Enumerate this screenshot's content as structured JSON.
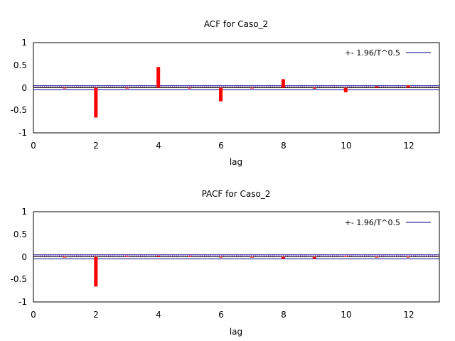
{
  "colors": {
    "bar": "#ff0000",
    "band": "#000080",
    "zero_line": "#000000",
    "dotted": "#a000a0",
    "axis": "#000000"
  },
  "chart_data": [
    {
      "type": "bar",
      "title": "ACF for Caso_2",
      "xlabel": "lag",
      "ylabel": "",
      "xlim": [
        0,
        13
      ],
      "ylim": [
        -1,
        1
      ],
      "xticks": [
        "0",
        "2",
        "4",
        "6",
        "8",
        "10",
        "12"
      ],
      "yticks": [
        "1",
        "0.5",
        "0",
        "-0.5",
        "-1"
      ],
      "legend": "+- 1.96/T^0.5",
      "legend_position": "top-right",
      "band": 0.043,
      "grid": false,
      "x": [
        1,
        2,
        3,
        4,
        5,
        6,
        7,
        8,
        9,
        10,
        11,
        12
      ],
      "values": [
        0.0,
        -0.66,
        -0.005,
        0.46,
        0.0,
        -0.3,
        -0.005,
        0.19,
        -0.02,
        -0.1,
        0.03,
        0.05
      ]
    },
    {
      "type": "bar",
      "title": "PACF for Caso_2",
      "xlabel": "lag",
      "ylabel": "",
      "xlim": [
        0,
        13
      ],
      "ylim": [
        -1,
        1
      ],
      "xticks": [
        "0",
        "2",
        "4",
        "6",
        "8",
        "10",
        "12"
      ],
      "yticks": [
        "1",
        "0.5",
        "0",
        "-0.5",
        "-1"
      ],
      "legend": "+- 1.96/T^0.5",
      "legend_position": "top-right",
      "band": 0.043,
      "grid": false,
      "x": [
        1,
        2,
        3,
        4,
        5,
        6,
        7,
        8,
        9,
        10,
        11,
        12
      ],
      "values": [
        0.0,
        -0.66,
        0.01,
        0.02,
        0.01,
        0.0,
        -0.01,
        -0.04,
        -0.04,
        0.01,
        0.0,
        0.0
      ]
    }
  ]
}
